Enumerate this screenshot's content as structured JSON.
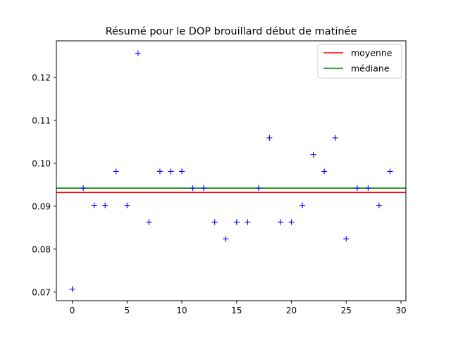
{
  "chart_data": {
    "type": "scatter",
    "title": "Résumé pour le DOP brouillard début de matinée",
    "xlabel": "",
    "ylabel": "",
    "xlim": [
      -1.45,
      30.45
    ],
    "ylim": [
      0.068,
      0.1285
    ],
    "x_ticks": [
      0,
      5,
      10,
      15,
      20,
      25,
      30
    ],
    "y_ticks": [
      0.07,
      0.08,
      0.09,
      0.1,
      0.11,
      0.12
    ],
    "x_tick_labels": [
      "0",
      "5",
      "10",
      "15",
      "20",
      "25",
      "30"
    ],
    "y_tick_labels": [
      "0.07",
      "0.08",
      "0.09",
      "0.10",
      "0.11",
      "0.12"
    ],
    "series": [
      {
        "marker": "+",
        "color": "#0000ff",
        "x": [
          0,
          1,
          2,
          3,
          4,
          5,
          6,
          7,
          8,
          9,
          10,
          11,
          12,
          13,
          14,
          15,
          16,
          17,
          18,
          19,
          20,
          21,
          22,
          23,
          24,
          25,
          26,
          27,
          28,
          29
        ],
        "y": [
          0.0707,
          0.0942,
          0.0902,
          0.0902,
          0.0981,
          0.0902,
          0.1256,
          0.0863,
          0.0981,
          0.0981,
          0.0981,
          0.0942,
          0.0942,
          0.0863,
          0.0824,
          0.0863,
          0.0863,
          0.0942,
          0.1059,
          0.0863,
          0.0863,
          0.0902,
          0.102,
          0.0981,
          0.1059,
          0.0824,
          0.0942,
          0.0942,
          0.0902,
          0.0981
        ]
      }
    ],
    "hlines": [
      {
        "name": "moyenne",
        "value": 0.0932,
        "color": "#ff0000"
      },
      {
        "name": "médiane",
        "value": 0.0942,
        "color": "#008000"
      }
    ],
    "legend_position": "top-right",
    "grid": false
  }
}
